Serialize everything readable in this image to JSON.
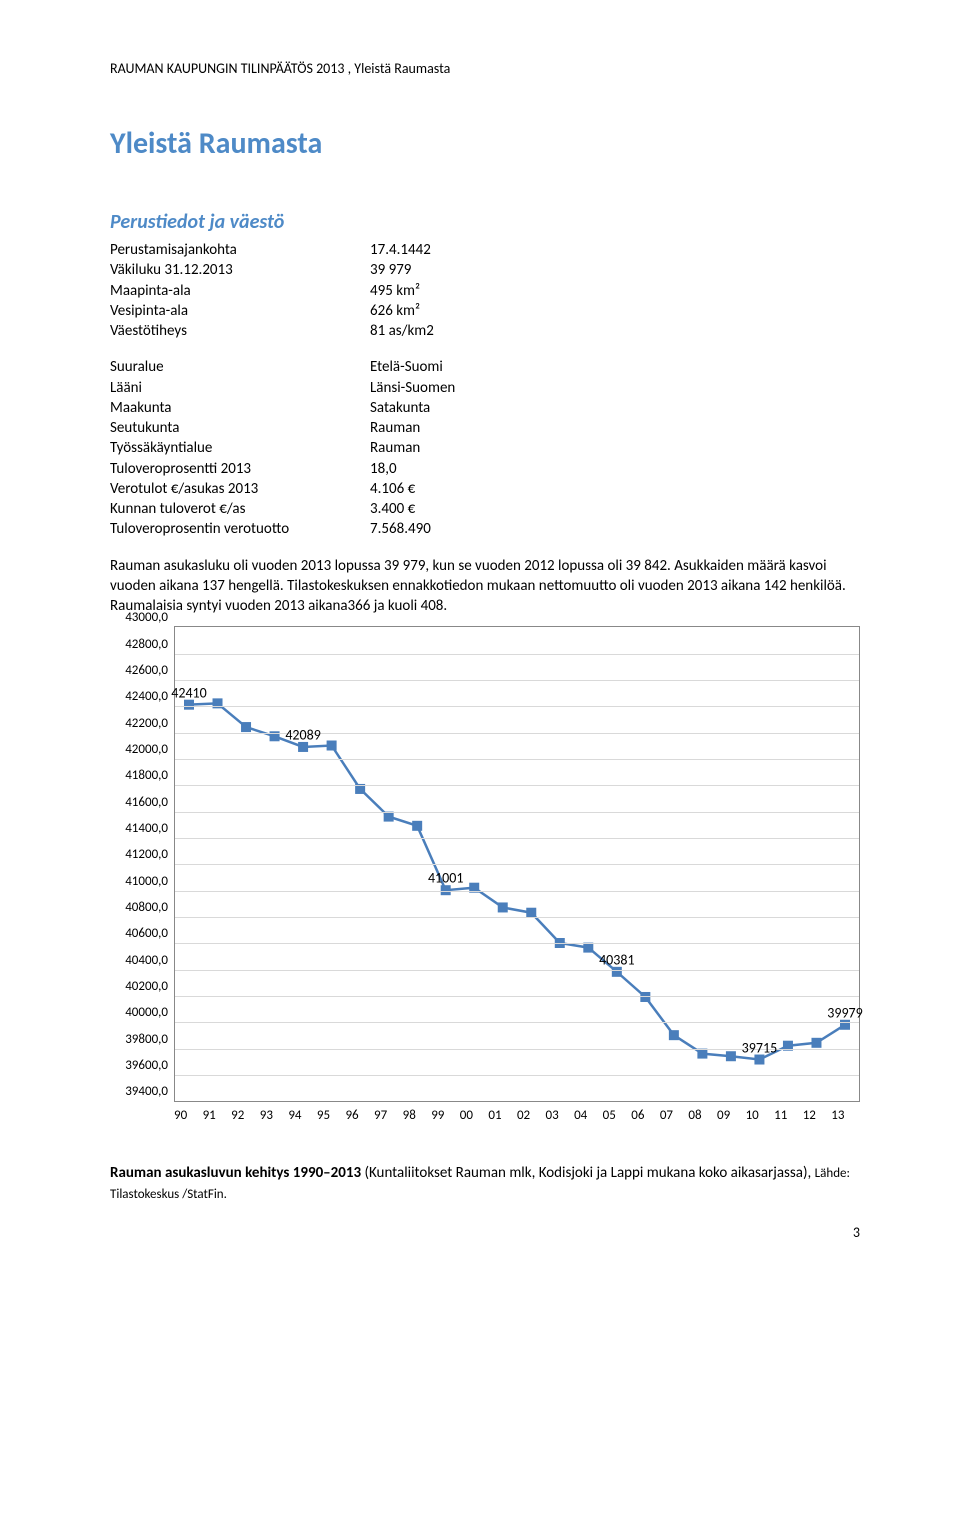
{
  "header": "RAUMAN KAUPUNGIN TILINPÄÄTÖS 2013 , Yleistä Raumasta",
  "title": "Yleistä Raumasta",
  "section1_title": "Perustiedot ja väestö",
  "facts1": [
    {
      "k": "Perustamisajankohta",
      "v": "17.4.1442"
    },
    {
      "k": "Väkiluku 31.12.2013",
      "v": "39 979"
    },
    {
      "k": "Maapinta-ala",
      "v": "495 km²"
    },
    {
      "k": "Vesipinta-ala",
      "v": "626 km²"
    },
    {
      "k": "Väestötiheys",
      "v": "81 as/km2"
    }
  ],
  "facts2": [
    {
      "k": "Suuralue",
      "v": "Etelä-Suomi"
    },
    {
      "k": "Lääni",
      "v": "Länsi-Suomen"
    },
    {
      "k": "Maakunta",
      "v": "Satakunta"
    },
    {
      "k": "Seutukunta",
      "v": "Rauman"
    },
    {
      "k": "Työssäkäyntialue",
      "v": "Rauman"
    },
    {
      "k": "Tuloveroprosentti 2013",
      "v": "18,0"
    },
    {
      "k": "Verotulot €/asukas 2013",
      "v": "4.106 €"
    },
    {
      "k": "Kunnan tuloverot €/as",
      "v": "3.400 €"
    },
    {
      "k": "Tuloveroprosentin verotuotto",
      "v": "7.568.490"
    }
  ],
  "body_para": "Rauman asukasluku oli vuoden 2013 lopussa 39 979, kun se vuoden 2012 lopussa oli 39 842. Asukkaiden määrä kasvoi vuoden aikana 137 hengellä. Tilastokeskuksen ennakkotiedon mukaan nettomuutto oli vuoden 2013 aikana 142 henkilöä. Raumalaisia syntyi vuoden 2013 aikana366 ja kuoli 408.",
  "chart": {
    "type": "line",
    "y_min": 39400,
    "y_max": 43000,
    "y_step": 200,
    "y_labels": [
      "43000,0",
      "42800,0",
      "42600,0",
      "42400,0",
      "42200,0",
      "42000,0",
      "41800,0",
      "41600,0",
      "41400,0",
      "41200,0",
      "41000,0",
      "40800,0",
      "40600,0",
      "40400,0",
      "40200,0",
      "40000,0",
      "39800,0",
      "39600,0",
      "39400,0"
    ],
    "x_labels": [
      "90",
      "91",
      "92",
      "93",
      "94",
      "95",
      "96",
      "97",
      "98",
      "99",
      "00",
      "01",
      "02",
      "03",
      "04",
      "05",
      "06",
      "07",
      "08",
      "09",
      "10",
      "11",
      "12",
      "13"
    ],
    "series_color": "#4a7ebb",
    "marker_fill": "#4a7ebb",
    "line_width": 2.5,
    "marker_size": 5,
    "grid_color": "#d9d9d9",
    "border_color": "#888888",
    "background": "#ffffff",
    "values": [
      42410,
      42420,
      42240,
      42170,
      42089,
      42100,
      41770,
      41560,
      41490,
      41001,
      41020,
      40870,
      40830,
      40600,
      40565,
      40381,
      40190,
      39900,
      39760,
      39740,
      39715,
      39820,
      39842,
      39979
    ],
    "annotations": [
      {
        "x_index": 0,
        "label": "42410"
      },
      {
        "x_index": 4,
        "label": "42089"
      },
      {
        "x_index": 9,
        "label": "41001"
      },
      {
        "x_index": 15,
        "label": "40381"
      },
      {
        "x_index": 20,
        "label": "39715"
      },
      {
        "x_index": 23,
        "label": "39979"
      }
    ]
  },
  "footer_para_a": "Rauman asukasluvun kehitys 1990–2013 ",
  "footer_para_b": "(Kuntaliitokset Rauman mlk, Kodisjoki ja Lappi mukana koko aikasarjassa), ",
  "footer_para_c": "Lähde: Tilastokeskus /StatFin.",
  "page_number": "3"
}
